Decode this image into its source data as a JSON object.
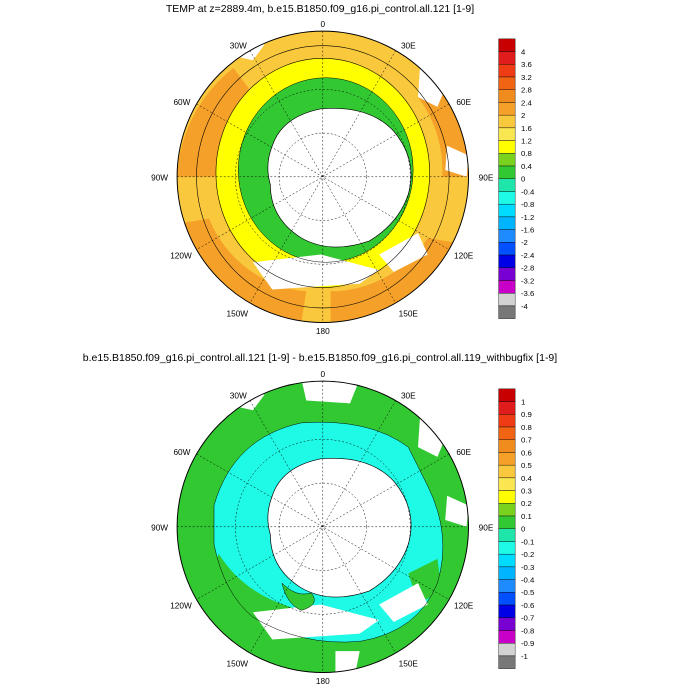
{
  "panels": [
    {
      "title": "TEMP at z=2889.4m, b.e15.B1850.f09_g16.pi_control.all.121 [1-9]",
      "lon_labels": [
        "0",
        "30E",
        "60E",
        "90E",
        "120E",
        "150E",
        "180",
        "150W",
        "120W",
        "90W",
        "60W",
        "30W"
      ],
      "colorbar": {
        "labels": [
          "4",
          "3.6",
          "3.2",
          "2.8",
          "2.4",
          "2",
          "1.6",
          "1.2",
          "0.8",
          "0.4",
          "0",
          "-0.4",
          "-0.8",
          "-1.2",
          "-1.6",
          "-2",
          "-2.4",
          "-2.8",
          "-3.2",
          "-3.6",
          "-4"
        ],
        "colors": [
          "#c80000",
          "#e01c1c",
          "#f03c14",
          "#f06414",
          "#f08c1e",
          "#f5a028",
          "#fac83c",
          "#fae650",
          "#ffff00",
          "#7ad21e",
          "#32c832",
          "#1ee6aa",
          "#1efae6",
          "#00dcff",
          "#00b4ff",
          "#1e8cff",
          "#0050ff",
          "#0000e6",
          "#7800d2",
          "#c800c8",
          "#d2d2d2",
          "#787878"
        ]
      }
    },
    {
      "title": "b.e15.B1850.f09_g16.pi_control.all.121 [1-9] - b.e15.B1850.f09_g16.pi_control.all.119_withbugfix [1-9]",
      "lon_labels": [
        "0",
        "30E",
        "60E",
        "90E",
        "120E",
        "150E",
        "180",
        "150W",
        "120W",
        "90W",
        "60W",
        "30W"
      ],
      "colorbar": {
        "labels": [
          "1",
          "0.9",
          "0.8",
          "0.7",
          "0.6",
          "0.5",
          "0.4",
          "0.3",
          "0.2",
          "0.1",
          "0",
          "-0.1",
          "-0.2",
          "-0.3",
          "-0.4",
          "-0.5",
          "-0.6",
          "-0.7",
          "-0.8",
          "-0.9",
          "-1"
        ],
        "colors": [
          "#c80000",
          "#e01c1c",
          "#f03c14",
          "#f06414",
          "#f08c1e",
          "#f5a028",
          "#fac83c",
          "#fae650",
          "#ffff00",
          "#7ad21e",
          "#32c832",
          "#1ee6aa",
          "#1efae6",
          "#00dcff",
          "#00b4ff",
          "#1e8cff",
          "#0050ff",
          "#0000e6",
          "#7800d2",
          "#c800c8",
          "#d2d2d2",
          "#787878"
        ]
      }
    }
  ]
}
